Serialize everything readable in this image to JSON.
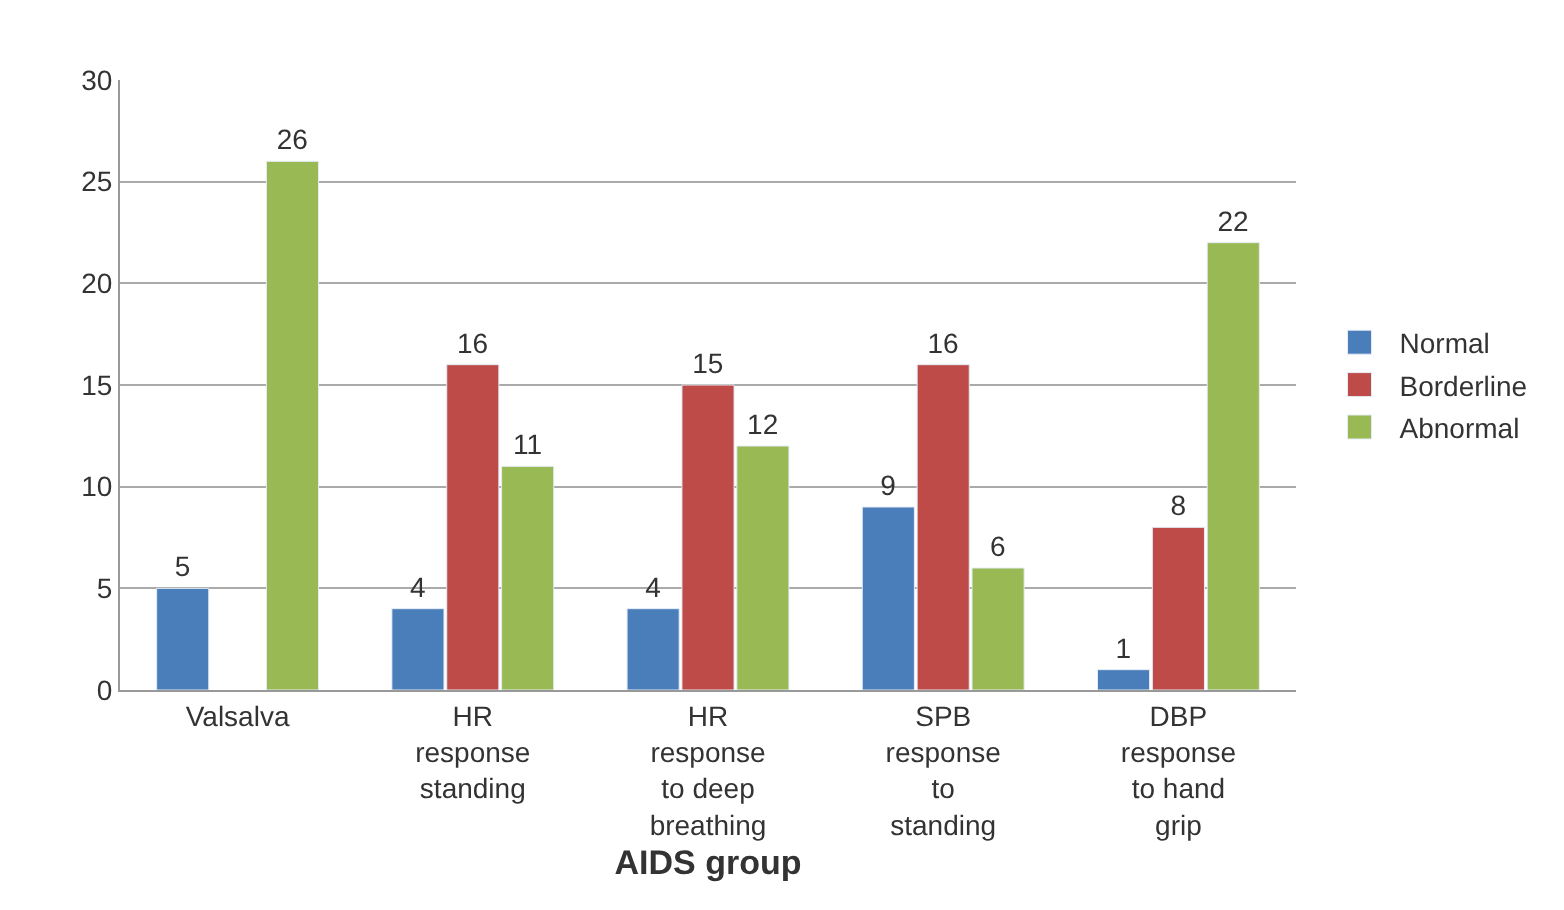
{
  "chart_data": {
    "type": "bar",
    "xlabel": "AIDS group",
    "categories": [
      "Valsalva",
      "HR response standing",
      "HR response to deep breathing",
      "SPB response to standing",
      "DBP response to hand grip"
    ],
    "series": [
      {
        "name": "Normal",
        "color": "#4a7ebb",
        "values": [
          5,
          4,
          4,
          9,
          1
        ]
      },
      {
        "name": "Borderline",
        "color": "#be4b48",
        "values": [
          null,
          16,
          15,
          16,
          8
        ]
      },
      {
        "name": "Abnormal",
        "color": "#98b954",
        "values": [
          26,
          11,
          12,
          6,
          22
        ]
      }
    ],
    "ylim": [
      0,
      30
    ],
    "yticks": [
      0,
      5,
      10,
      15,
      20,
      25,
      30
    ],
    "grid": "y",
    "legend": "right",
    "data_labels": true
  }
}
